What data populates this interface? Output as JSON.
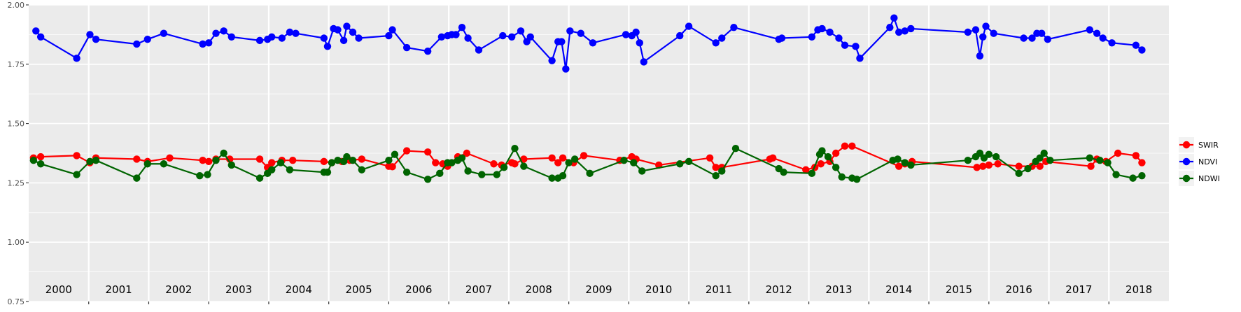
{
  "chart_data": {
    "type": "line",
    "title": "",
    "xlabel": "",
    "ylabel": "",
    "ylim": [
      0.75,
      2.0
    ],
    "y_ticks": [
      "0.75",
      "1.00",
      "1.25",
      "1.50",
      "1.75",
      "2.00"
    ],
    "years": [
      "2000",
      "2001",
      "2002",
      "2003",
      "2004",
      "2005",
      "2006",
      "2007",
      "2008",
      "2009",
      "2010",
      "2011",
      "2012",
      "2013",
      "2014",
      "2015",
      "2016",
      "2017",
      "2018"
    ],
    "x_range": [
      0,
      19
    ],
    "grid": true,
    "panel_background": "#ebebeb",
    "legend_position": "right",
    "series": [
      {
        "name": "SWIR",
        "color": "#ff0000",
        "points": [
          [
            0.08,
            1.355
          ],
          [
            0.2,
            1.36
          ],
          [
            0.8,
            1.365
          ],
          [
            1.02,
            1.335
          ],
          [
            1.12,
            1.355
          ],
          [
            1.8,
            1.35
          ],
          [
            1.98,
            1.34
          ],
          [
            2.35,
            1.355
          ],
          [
            2.9,
            1.345
          ],
          [
            3.0,
            1.34
          ],
          [
            3.12,
            1.35
          ],
          [
            3.35,
            1.35
          ],
          [
            3.85,
            1.35
          ],
          [
            3.98,
            1.315
          ],
          [
            4.05,
            1.335
          ],
          [
            4.22,
            1.345
          ],
          [
            4.4,
            1.345
          ],
          [
            4.92,
            1.34
          ],
          [
            5.05,
            1.335
          ],
          [
            5.22,
            1.34
          ],
          [
            5.35,
            1.345
          ],
          [
            5.55,
            1.35
          ],
          [
            6.0,
            1.32
          ],
          [
            6.06,
            1.318
          ],
          [
            6.3,
            1.385
          ],
          [
            6.65,
            1.38
          ],
          [
            6.78,
            1.335
          ],
          [
            6.9,
            1.33
          ],
          [
            6.98,
            1.32
          ],
          [
            7.15,
            1.36
          ],
          [
            7.3,
            1.375
          ],
          [
            7.75,
            1.33
          ],
          [
            7.88,
            1.325
          ],
          [
            8.05,
            1.335
          ],
          [
            8.1,
            1.33
          ],
          [
            8.25,
            1.35
          ],
          [
            8.72,
            1.355
          ],
          [
            8.82,
            1.335
          ],
          [
            8.9,
            1.355
          ],
          [
            9.08,
            1.335
          ],
          [
            9.25,
            1.365
          ],
          [
            9.85,
            1.345
          ],
          [
            10.05,
            1.36
          ],
          [
            10.12,
            1.35
          ],
          [
            10.5,
            1.325
          ],
          [
            11.35,
            1.355
          ],
          [
            11.45,
            1.315
          ],
          [
            11.55,
            1.315
          ],
          [
            12.35,
            1.35
          ],
          [
            12.4,
            1.355
          ],
          [
            12.95,
            1.305
          ],
          [
            13.1,
            1.315
          ],
          [
            13.2,
            1.33
          ],
          [
            13.35,
            1.34
          ],
          [
            13.45,
            1.375
          ],
          [
            13.6,
            1.405
          ],
          [
            13.72,
            1.405
          ],
          [
            14.5,
            1.32
          ],
          [
            14.6,
            1.33
          ],
          [
            14.72,
            1.34
          ],
          [
            15.8,
            1.315
          ],
          [
            15.9,
            1.32
          ],
          [
            16.0,
            1.325
          ],
          [
            16.15,
            1.33
          ],
          [
            16.5,
            1.32
          ],
          [
            16.72,
            1.32
          ],
          [
            16.85,
            1.32
          ],
          [
            16.95,
            1.34
          ],
          [
            17.7,
            1.32
          ],
          [
            17.8,
            1.35
          ],
          [
            17.95,
            1.34
          ],
          [
            18.15,
            1.375
          ],
          [
            18.45,
            1.365
          ],
          [
            18.55,
            1.335
          ]
        ]
      },
      {
        "name": "NDVI",
        "color": "#0000ff",
        "points": [
          [
            0.12,
            1.89
          ],
          [
            0.2,
            1.865
          ],
          [
            0.8,
            1.775
          ],
          [
            1.02,
            1.875
          ],
          [
            1.12,
            1.855
          ],
          [
            1.8,
            1.835
          ],
          [
            1.98,
            1.855
          ],
          [
            2.25,
            1.88
          ],
          [
            2.9,
            1.835
          ],
          [
            3.0,
            1.84
          ],
          [
            3.12,
            1.88
          ],
          [
            3.25,
            1.89
          ],
          [
            3.38,
            1.865
          ],
          [
            3.85,
            1.85
          ],
          [
            3.98,
            1.855
          ],
          [
            4.05,
            1.865
          ],
          [
            4.22,
            1.86
          ],
          [
            4.35,
            1.885
          ],
          [
            4.45,
            1.88
          ],
          [
            4.92,
            1.86
          ],
          [
            4.98,
            1.825
          ],
          [
            5.08,
            1.9
          ],
          [
            5.15,
            1.895
          ],
          [
            5.25,
            1.85
          ],
          [
            5.3,
            1.91
          ],
          [
            5.4,
            1.885
          ],
          [
            5.5,
            1.86
          ],
          [
            6.0,
            1.87
          ],
          [
            6.06,
            1.895
          ],
          [
            6.3,
            1.82
          ],
          [
            6.65,
            1.805
          ],
          [
            6.88,
            1.865
          ],
          [
            6.98,
            1.87
          ],
          [
            7.05,
            1.875
          ],
          [
            7.12,
            1.875
          ],
          [
            7.22,
            1.905
          ],
          [
            7.32,
            1.86
          ],
          [
            7.5,
            1.81
          ],
          [
            7.9,
            1.87
          ],
          [
            8.05,
            1.865
          ],
          [
            8.2,
            1.89
          ],
          [
            8.3,
            1.845
          ],
          [
            8.36,
            1.865
          ],
          [
            8.72,
            1.765
          ],
          [
            8.82,
            1.845
          ],
          [
            8.88,
            1.845
          ],
          [
            8.95,
            1.73
          ],
          [
            9.02,
            1.89
          ],
          [
            9.2,
            1.88
          ],
          [
            9.4,
            1.84
          ],
          [
            9.95,
            1.875
          ],
          [
            10.05,
            1.87
          ],
          [
            10.12,
            1.885
          ],
          [
            10.18,
            1.84
          ],
          [
            10.25,
            1.76
          ],
          [
            10.85,
            1.87
          ],
          [
            11.0,
            1.91
          ],
          [
            11.45,
            1.84
          ],
          [
            11.55,
            1.86
          ],
          [
            11.75,
            1.905
          ],
          [
            12.5,
            1.855
          ],
          [
            12.55,
            1.86
          ],
          [
            13.05,
            1.865
          ],
          [
            13.15,
            1.895
          ],
          [
            13.22,
            1.9
          ],
          [
            13.35,
            1.885
          ],
          [
            13.5,
            1.86
          ],
          [
            13.6,
            1.83
          ],
          [
            13.78,
            1.825
          ],
          [
            13.85,
            1.775
          ],
          [
            14.35,
            1.905
          ],
          [
            14.42,
            1.945
          ],
          [
            14.5,
            1.885
          ],
          [
            14.6,
            1.89
          ],
          [
            14.7,
            1.9
          ],
          [
            15.65,
            1.885
          ],
          [
            15.78,
            1.895
          ],
          [
            15.85,
            1.785
          ],
          [
            15.9,
            1.865
          ],
          [
            15.95,
            1.91
          ],
          [
            16.08,
            1.88
          ],
          [
            16.58,
            1.86
          ],
          [
            16.72,
            1.86
          ],
          [
            16.8,
            1.88
          ],
          [
            16.88,
            1.88
          ],
          [
            16.98,
            1.855
          ],
          [
            17.68,
            1.895
          ],
          [
            17.8,
            1.88
          ],
          [
            17.9,
            1.86
          ],
          [
            18.05,
            1.84
          ],
          [
            18.45,
            1.83
          ],
          [
            18.55,
            1.81
          ]
        ]
      },
      {
        "name": "NDWI",
        "color": "#006400",
        "points": [
          [
            0.08,
            1.345
          ],
          [
            0.2,
            1.33
          ],
          [
            0.8,
            1.285
          ],
          [
            1.02,
            1.34
          ],
          [
            1.12,
            1.345
          ],
          [
            1.8,
            1.27
          ],
          [
            1.98,
            1.33
          ],
          [
            2.25,
            1.33
          ],
          [
            2.85,
            1.28
          ],
          [
            2.98,
            1.285
          ],
          [
            3.12,
            1.345
          ],
          [
            3.25,
            1.375
          ],
          [
            3.38,
            1.325
          ],
          [
            3.85,
            1.27
          ],
          [
            3.98,
            1.29
          ],
          [
            4.05,
            1.305
          ],
          [
            4.2,
            1.335
          ],
          [
            4.35,
            1.305
          ],
          [
            4.92,
            1.295
          ],
          [
            4.98,
            1.295
          ],
          [
            5.05,
            1.335
          ],
          [
            5.15,
            1.345
          ],
          [
            5.25,
            1.34
          ],
          [
            5.3,
            1.36
          ],
          [
            5.4,
            1.345
          ],
          [
            5.55,
            1.305
          ],
          [
            6.0,
            1.345
          ],
          [
            6.1,
            1.37
          ],
          [
            6.3,
            1.295
          ],
          [
            6.65,
            1.265
          ],
          [
            6.85,
            1.29
          ],
          [
            6.98,
            1.335
          ],
          [
            7.05,
            1.335
          ],
          [
            7.15,
            1.345
          ],
          [
            7.22,
            1.355
          ],
          [
            7.32,
            1.3
          ],
          [
            7.55,
            1.285
          ],
          [
            7.8,
            1.285
          ],
          [
            7.92,
            1.315
          ],
          [
            8.1,
            1.395
          ],
          [
            8.25,
            1.32
          ],
          [
            8.72,
            1.27
          ],
          [
            8.82,
            1.27
          ],
          [
            8.9,
            1.28
          ],
          [
            9.0,
            1.335
          ],
          [
            9.1,
            1.35
          ],
          [
            9.35,
            1.29
          ],
          [
            9.92,
            1.345
          ],
          [
            10.08,
            1.335
          ],
          [
            10.22,
            1.3
          ],
          [
            10.85,
            1.33
          ],
          [
            11.0,
            1.34
          ],
          [
            11.45,
            1.28
          ],
          [
            11.55,
            1.3
          ],
          [
            11.78,
            1.395
          ],
          [
            12.5,
            1.31
          ],
          [
            12.58,
            1.295
          ],
          [
            13.05,
            1.29
          ],
          [
            13.18,
            1.37
          ],
          [
            13.22,
            1.385
          ],
          [
            13.32,
            1.36
          ],
          [
            13.45,
            1.315
          ],
          [
            13.55,
            1.275
          ],
          [
            13.72,
            1.27
          ],
          [
            13.8,
            1.265
          ],
          [
            14.4,
            1.345
          ],
          [
            14.48,
            1.35
          ],
          [
            14.6,
            1.335
          ],
          [
            14.7,
            1.325
          ],
          [
            15.65,
            1.345
          ],
          [
            15.78,
            1.36
          ],
          [
            15.85,
            1.375
          ],
          [
            15.92,
            1.355
          ],
          [
            16.0,
            1.37
          ],
          [
            16.12,
            1.36
          ],
          [
            16.5,
            1.29
          ],
          [
            16.65,
            1.31
          ],
          [
            16.78,
            1.34
          ],
          [
            16.85,
            1.355
          ],
          [
            16.92,
            1.375
          ],
          [
            17.02,
            1.345
          ],
          [
            17.68,
            1.355
          ],
          [
            17.85,
            1.345
          ],
          [
            17.98,
            1.335
          ],
          [
            18.12,
            1.285
          ],
          [
            18.4,
            1.27
          ],
          [
            18.55,
            1.28
          ]
        ]
      }
    ]
  }
}
